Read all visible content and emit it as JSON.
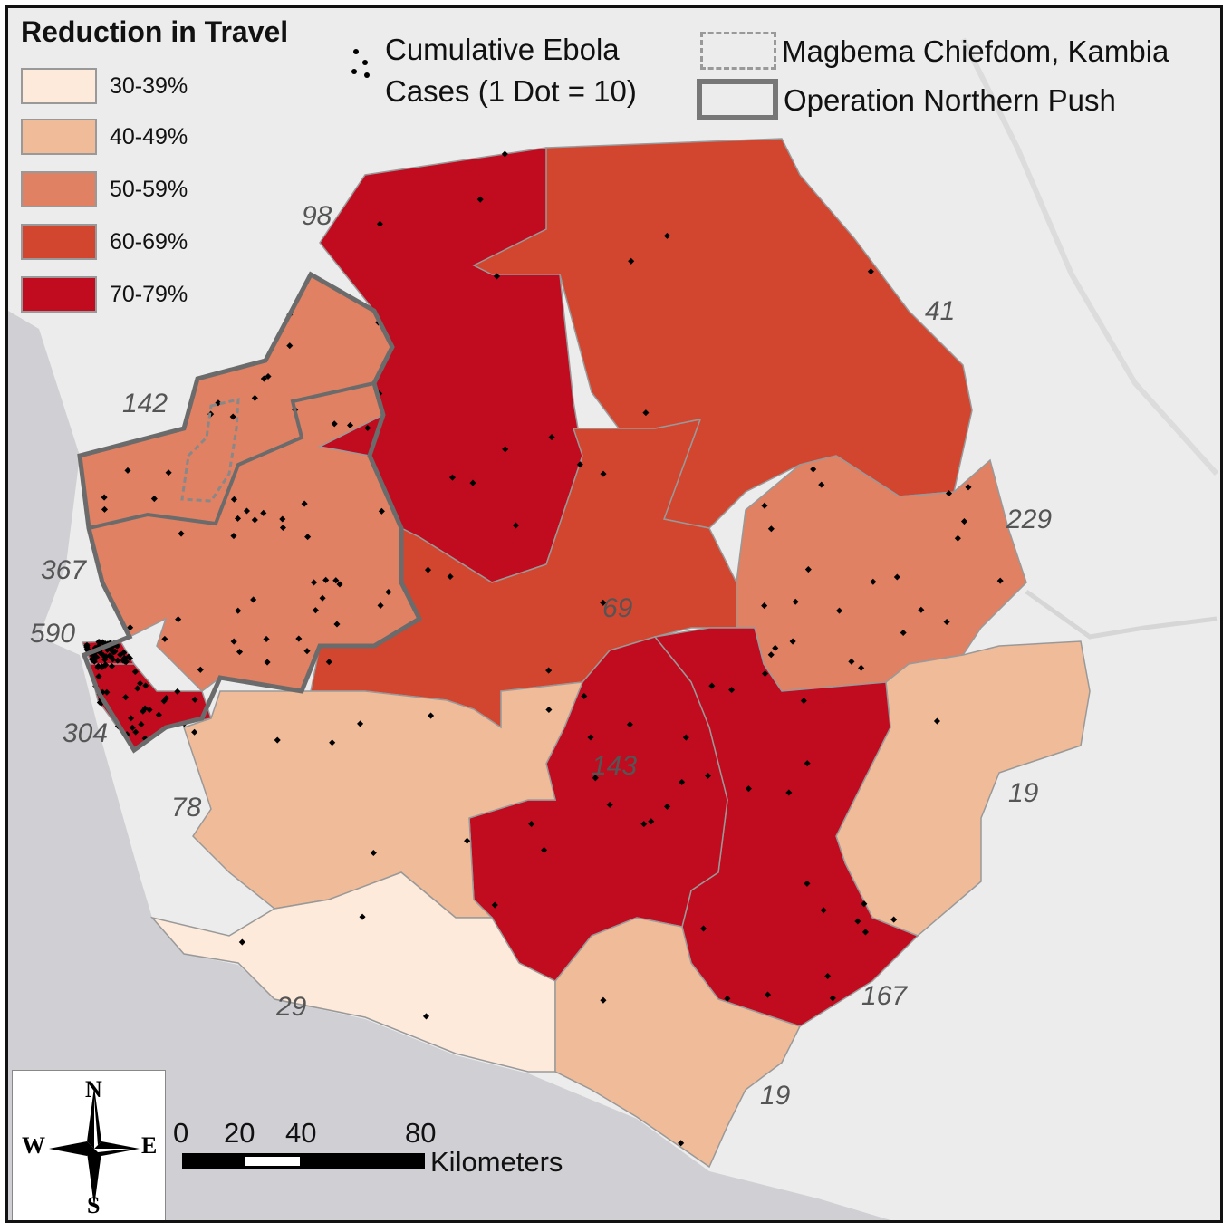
{
  "legend": {
    "title": "Reduction in Travel",
    "classes": [
      {
        "label": "30-39%",
        "color": "#fdeada"
      },
      {
        "label": "40-49%",
        "color": "#f0bb98"
      },
      {
        "label": "50-59%",
        "color": "#e08163"
      },
      {
        "label": "60-69%",
        "color": "#d2452f"
      },
      {
        "label": "70-79%",
        "color": "#c10b1f"
      }
    ],
    "dots_label_line1": "Cumulative Ebola",
    "dots_label_line2": "Cases (1 Dot = 10)",
    "magbema_label": "Magbema Chiefdom, Kambia",
    "operation_label": "Operation Northern Push"
  },
  "districts": [
    {
      "id": "kambia",
      "cases_label": "142",
      "class": 2
    },
    {
      "id": "port-loko",
      "cases_label": "367",
      "class": 2
    },
    {
      "id": "western-urban",
      "cases_label": "590",
      "class": 4
    },
    {
      "id": "western-rural",
      "cases_label": "304",
      "class": 4
    },
    {
      "id": "bombali",
      "cases_label": "98",
      "class": 4
    },
    {
      "id": "koinadugu",
      "cases_label": "41",
      "class": 3
    },
    {
      "id": "tonkolili",
      "cases_label": "69",
      "class": 3
    },
    {
      "id": "kono",
      "cases_label": "229",
      "class": 2
    },
    {
      "id": "kailahun",
      "cases_label": "19",
      "class": 1
    },
    {
      "id": "kenema",
      "cases_label": "167",
      "class": 4
    },
    {
      "id": "bo",
      "cases_label": "143",
      "class": 4
    },
    {
      "id": "moyamba",
      "cases_label": "78",
      "class": 1
    },
    {
      "id": "bonthe",
      "cases_label": "29",
      "class": 0
    },
    {
      "id": "pujehun",
      "cases_label": "19",
      "class": 1
    }
  ],
  "compass": {
    "n": "N",
    "s": "S",
    "e": "E",
    "w": "W"
  },
  "scale": {
    "ticks": [
      "0",
      "20",
      "40",
      "80"
    ],
    "unit": "Kilometers"
  }
}
